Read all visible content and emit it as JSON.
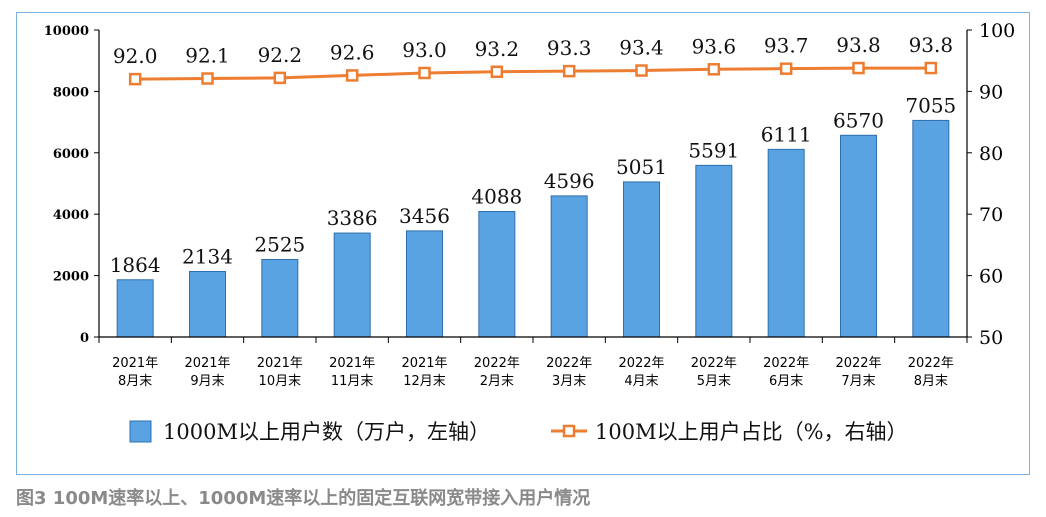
{
  "caption": "图3 100M速率以上、1000M速率以上的固定互联网宽带接入用户情况",
  "colors": {
    "bar": "#5aa3e3",
    "bar_edge": "#2f6fab",
    "line": "#ed7d31",
    "frame": "#7fb2de",
    "caption": "#8a8a8a"
  },
  "chart_data": {
    "type": "bar+line",
    "categories": [
      [
        "2021年",
        "8月末"
      ],
      [
        "2021年",
        "9月末"
      ],
      [
        "2021年",
        "10月末"
      ],
      [
        "2021年",
        "11月末"
      ],
      [
        "2021年",
        "12月末"
      ],
      [
        "2022年",
        "2月末"
      ],
      [
        "2022年",
        "3月末"
      ],
      [
        "2022年",
        "4月末"
      ],
      [
        "2022年",
        "5月末"
      ],
      [
        "2022年",
        "6月末"
      ],
      [
        "2022年",
        "7月末"
      ],
      [
        "2022年",
        "8月末"
      ]
    ],
    "series": [
      {
        "name": "1000M以上用户数（万户，左轴）",
        "type": "bar",
        "axis": "left",
        "values": [
          1864,
          2134,
          2525,
          3386,
          3456,
          4088,
          4596,
          5051,
          5591,
          6111,
          6570,
          7055
        ],
        "labels": [
          "1864",
          "2134",
          "2525",
          "3386",
          "3456",
          "4088",
          "4596",
          "5051",
          "5591",
          "6111",
          "6570",
          "7055"
        ]
      },
      {
        "name": "100M以上用户占比（%，右轴）",
        "type": "line",
        "axis": "right",
        "values": [
          92.0,
          92.1,
          92.2,
          92.6,
          93.0,
          93.2,
          93.3,
          93.4,
          93.6,
          93.7,
          93.8,
          93.8
        ],
        "labels": [
          "92.0",
          "92.1",
          "92.2",
          "92.6",
          "93.0",
          "93.2",
          "93.3",
          "93.4",
          "93.6",
          "93.7",
          "93.8",
          "93.8"
        ]
      }
    ],
    "y_left": {
      "min": 0,
      "max": 10000,
      "ticks": [
        "0",
        "2000",
        "4000",
        "6000",
        "8000",
        "10000"
      ]
    },
    "y_right": {
      "min": 50,
      "max": 100,
      "ticks": [
        "50",
        "60",
        "70",
        "80",
        "90",
        "100"
      ]
    },
    "grid": false,
    "legend": "bottom"
  }
}
